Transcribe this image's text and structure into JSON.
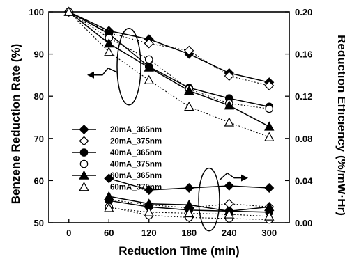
{
  "chart_data": {
    "type": "line",
    "title": "",
    "xlabel": "Reduction Time (min)",
    "ylabel_left": "Benzene Reduction Rate (%)",
    "ylabel_right": "Reduction Efficiency (%/mW·Hr)",
    "x_ticks": [
      "0",
      "60",
      "120",
      "180",
      "240",
      "300"
    ],
    "y_left_ticks": [
      "50",
      "60",
      "70",
      "80",
      "90",
      "100"
    ],
    "y_right_ticks": [
      "0.00",
      "0.04",
      "0.08",
      "0.12",
      "0.16",
      "0.20"
    ],
    "xlim": [
      -30,
      330
    ],
    "ylim_left": [
      50,
      100
    ],
    "ylim_right": [
      0.0,
      0.2
    ],
    "grid": false,
    "legend_position": "left-middle",
    "series": [
      {
        "name": "20mA_365nm",
        "marker": "diamond-filled",
        "line": "solid",
        "axis": "left",
        "x": [
          0,
          60,
          120,
          180,
          240,
          300
        ],
        "y": [
          100,
          95.5,
          93.5,
          90.0,
          85.5,
          83.3
        ]
      },
      {
        "name": "20mA_375nm",
        "marker": "diamond-open",
        "line": "dotted",
        "axis": "left",
        "x": [
          0,
          60,
          120,
          180,
          240,
          300
        ],
        "y": [
          100,
          95.0,
          92.5,
          90.8,
          84.8,
          82.5
        ]
      },
      {
        "name": "40mA_365nm",
        "marker": "circle-filled",
        "line": "solid",
        "axis": "left",
        "x": [
          0,
          60,
          120,
          180,
          240,
          300
        ],
        "y": [
          100,
          94.8,
          87.0,
          82.0,
          79.5,
          77.5
        ]
      },
      {
        "name": "40mA_375nm",
        "marker": "circle-open",
        "line": "dotted",
        "axis": "left",
        "x": [
          0,
          60,
          120,
          180,
          240,
          300
        ],
        "y": [
          100,
          93.8,
          88.7,
          81.7,
          78.3,
          77.0
        ]
      },
      {
        "name": "60mA_365nm",
        "marker": "triangle-filled",
        "line": "solid",
        "axis": "left",
        "x": [
          0,
          60,
          120,
          180,
          240,
          300
        ],
        "y": [
          100,
          92.5,
          86.8,
          81.3,
          77.8,
          72.8
        ]
      },
      {
        "name": "60mA_375nm",
        "marker": "triangle-open",
        "line": "dotted",
        "axis": "left",
        "x": [
          0,
          60,
          120,
          180,
          240,
          300
        ],
        "y": [
          100,
          90.5,
          83.8,
          77.5,
          73.8,
          70.3
        ]
      },
      {
        "name": "20mA_365nm",
        "marker": "diamond-filled",
        "line": "solid",
        "axis": "right",
        "in_legend": false,
        "x": [
          60,
          120,
          180,
          240,
          300
        ],
        "y": [
          0.042,
          0.031,
          0.033,
          0.035,
          0.033
        ]
      },
      {
        "name": "20mA_375nm",
        "marker": "diamond-open",
        "line": "dotted",
        "axis": "right",
        "in_legend": false,
        "x": [
          60,
          120,
          180,
          240,
          300
        ],
        "y": [
          0.022,
          0.017,
          0.014,
          0.018,
          0.015
        ]
      },
      {
        "name": "40mA_365nm",
        "marker": "circle-filled",
        "line": "solid",
        "axis": "right",
        "in_legend": false,
        "x": [
          60,
          120,
          180,
          240,
          300
        ],
        "y": [
          0.021,
          0.015,
          0.012,
          0.011,
          0.01
        ]
      },
      {
        "name": "40mA_375nm",
        "marker": "circle-open",
        "line": "dotted",
        "axis": "right",
        "in_legend": false,
        "x": [
          60,
          120,
          180,
          240,
          300
        ],
        "y": [
          0.015,
          0.007,
          0.005,
          0.004,
          0.003
        ]
      },
      {
        "name": "60mA_365nm",
        "marker": "triangle-filled",
        "line": "solid",
        "axis": "right",
        "in_legend": false,
        "x": [
          60,
          120,
          180,
          240,
          300
        ],
        "y": [
          0.025,
          0.018,
          0.017,
          0.011,
          0.015
        ]
      },
      {
        "name": "60mA_375nm",
        "marker": "triangle-open",
        "line": "dotted",
        "axis": "right",
        "in_legend": false,
        "x": [
          60,
          120,
          180,
          240,
          300
        ],
        "y": [
          0.014,
          0.01,
          0.009,
          0.008,
          0.006
        ]
      }
    ],
    "annotations": [
      {
        "type": "ellipse-arrow",
        "target": "left-axis",
        "x": 90,
        "y": 87
      },
      {
        "type": "ellipse-arrow",
        "target": "right-axis",
        "x": 210,
        "y": 0.022
      }
    ]
  },
  "colors": {
    "foreground": "#000000",
    "background": "#ffffff"
  }
}
